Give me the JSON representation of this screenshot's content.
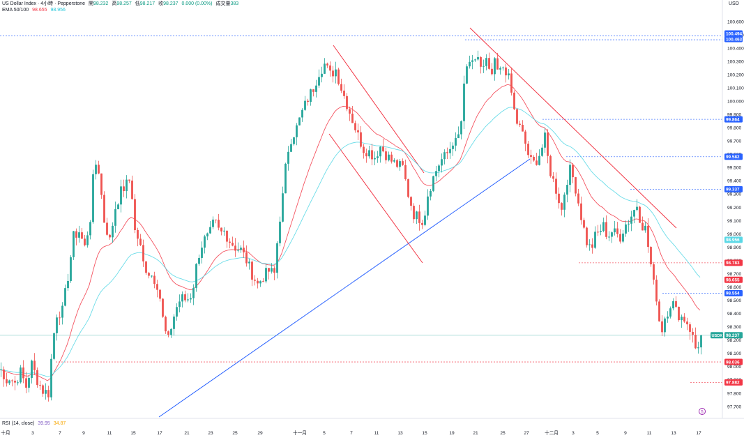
{
  "header": {
    "symbol_line": "US Dollar Index · 4小時 · Pepperstone",
    "ohlc": [
      {
        "k": "開",
        "v": "98.232"
      },
      {
        "k": "高",
        "v": "98.257"
      },
      {
        "k": "低",
        "v": "98.217"
      },
      {
        "k": "收",
        "v": "98.237"
      }
    ],
    "change": "0.000 (0.00%)",
    "volume_label": "成交量",
    "volume": "383",
    "ema_label": "EMA 50/100",
    "ema50_value": "98.655",
    "ema100_value": "98.956",
    "currency": "USD"
  },
  "rsi": {
    "label": "RSI (14, close)",
    "value1": "39.95",
    "value2": "34.87"
  },
  "colors": {
    "up": "#26a69a",
    "down": "#ef5350",
    "ema50": "#f23645",
    "ema100": "#5ad8e6",
    "trendline_blue": "#2962ff",
    "channel_red": "#f23645",
    "level_blue": "#2962ff",
    "level_red": "#f23645",
    "current": "#26a69a"
  },
  "events_marker": "5",
  "chart_data": {
    "type": "candlestick",
    "title": "",
    "y_ticks": [
      "97.700",
      "97.800",
      "97.900",
      "98.000",
      "98.100",
      "98.200",
      "98.300",
      "98.400",
      "98.500",
      "98.600",
      "98.700",
      "98.800",
      "98.900",
      "99.000",
      "99.100",
      "99.200",
      "99.300",
      "99.400",
      "99.500",
      "99.600",
      "99.700",
      "99.800",
      "99.900",
      "100.000",
      "100.100",
      "100.200",
      "100.300",
      "100.400",
      "100.500",
      "100.600"
    ],
    "ylim": [
      97.62,
      100.73
    ],
    "x_ticks": [
      "十月",
      "3",
      "7",
      "9",
      "11",
      "15",
      "17",
      "21",
      "23",
      "25",
      "29",
      "十一月",
      "5",
      "7",
      "11",
      "13",
      "15",
      "19",
      "21",
      "25",
      "27",
      "十二月",
      "3",
      "5",
      "9",
      "11",
      "13",
      "17"
    ],
    "current_price": "98.237",
    "current_symbol": "USDX",
    "price_tags": [
      {
        "value": "100.494",
        "style": "blue"
      },
      {
        "value": "100.463",
        "style": "blue"
      },
      {
        "value": "99.864",
        "style": "blue"
      },
      {
        "value": "99.582",
        "style": "blue"
      },
      {
        "value": "99.337",
        "style": "blue"
      },
      {
        "value": "98.956",
        "style": "cyan"
      },
      {
        "value": "98.783",
        "style": "red"
      },
      {
        "value": "98.655",
        "style": "red"
      },
      {
        "value": "98.554",
        "style": "blue"
      },
      {
        "value": "98.036",
        "style": "red"
      },
      {
        "value": "97.882",
        "style": "red"
      }
    ],
    "path_anchors": [
      [
        0,
        97.98
      ],
      [
        4,
        97.9
      ],
      [
        12,
        97.92
      ],
      [
        20,
        97.88
      ],
      [
        28,
        97.96
      ],
      [
        36,
        97.85
      ],
      [
        44,
        98.02
      ],
      [
        52,
        97.9
      ],
      [
        60,
        97.82
      ],
      [
        68,
        97.8
      ],
      [
        74,
        98.18
      ],
      [
        80,
        98.4
      ],
      [
        88,
        98.42
      ],
      [
        96,
        98.68
      ],
      [
        104,
        98.98
      ],
      [
        112,
        99.02
      ],
      [
        120,
        98.9
      ],
      [
        128,
        99.12
      ],
      [
        134,
        99.55
      ],
      [
        140,
        99.48
      ],
      [
        148,
        99.1
      ],
      [
        156,
        98.95
      ],
      [
        164,
        99.2
      ],
      [
        172,
        99.32
      ],
      [
        178,
        99.36
      ],
      [
        186,
        99.42
      ],
      [
        192,
        99.02
      ],
      [
        198,
        98.95
      ],
      [
        204,
        98.78
      ],
      [
        210,
        98.72
      ],
      [
        218,
        98.68
      ],
      [
        226,
        98.6
      ],
      [
        234,
        98.28
      ],
      [
        240,
        98.2
      ],
      [
        246,
        98.35
      ],
      [
        252,
        98.45
      ],
      [
        258,
        98.52
      ],
      [
        266,
        98.5
      ],
      [
        274,
        98.55
      ],
      [
        282,
        98.82
      ],
      [
        290,
        98.95
      ],
      [
        298,
        98.98
      ],
      [
        306,
        99.1
      ],
      [
        314,
        99.0
      ],
      [
        320,
        99.02
      ],
      [
        328,
        98.95
      ],
      [
        336,
        98.9
      ],
      [
        344,
        98.88
      ],
      [
        352,
        98.8
      ],
      [
        360,
        98.7
      ],
      [
        368,
        98.62
      ],
      [
        376,
        98.68
      ],
      [
        384,
        98.72
      ],
      [
        392,
        98.7
      ],
      [
        398,
        99.05
      ],
      [
        404,
        99.28
      ],
      [
        410,
        99.6
      ],
      [
        416,
        99.72
      ],
      [
        424,
        99.8
      ],
      [
        432,
        99.92
      ],
      [
        440,
        100.02
      ],
      [
        448,
        100.1
      ],
      [
        456,
        100.22
      ],
      [
        464,
        100.28
      ],
      [
        472,
        100.2
      ],
      [
        480,
        100.24
      ],
      [
        488,
        100.1
      ],
      [
        496,
        99.98
      ],
      [
        504,
        99.86
      ],
      [
        512,
        99.74
      ],
      [
        520,
        99.64
      ],
      [
        528,
        99.62
      ],
      [
        536,
        99.58
      ],
      [
        544,
        99.66
      ],
      [
        552,
        99.6
      ],
      [
        560,
        99.55
      ],
      [
        568,
        99.52
      ],
      [
        576,
        99.5
      ],
      [
        584,
        99.3
      ],
      [
        592,
        99.15
      ],
      [
        600,
        99.12
      ],
      [
        606,
        99.1
      ],
      [
        612,
        99.3
      ],
      [
        618,
        99.4
      ],
      [
        624,
        99.48
      ],
      [
        630,
        99.55
      ],
      [
        636,
        99.58
      ],
      [
        642,
        99.62
      ],
      [
        648,
        99.7
      ],
      [
        654,
        99.68
      ],
      [
        660,
        99.85
      ],
      [
        666,
        100.22
      ],
      [
        672,
        100.3
      ],
      [
        678,
        100.25
      ],
      [
        684,
        100.34
      ],
      [
        690,
        100.22
      ],
      [
        696,
        100.3
      ],
      [
        702,
        100.16
      ],
      [
        708,
        100.28
      ],
      [
        714,
        100.2
      ],
      [
        720,
        100.26
      ],
      [
        726,
        100.22
      ],
      [
        732,
        100.06
      ],
      [
        738,
        99.86
      ],
      [
        744,
        99.8
      ],
      [
        750,
        99.72
      ],
      [
        756,
        99.6
      ],
      [
        762,
        99.52
      ],
      [
        768,
        99.56
      ],
      [
        774,
        99.62
      ],
      [
        780,
        99.72
      ],
      [
        786,
        99.5
      ],
      [
        792,
        99.4
      ],
      [
        798,
        99.3
      ],
      [
        804,
        99.18
      ],
      [
        810,
        99.38
      ],
      [
        816,
        99.48
      ],
      [
        822,
        99.4
      ],
      [
        828,
        99.24
      ],
      [
        834,
        99.08
      ],
      [
        840,
        98.94
      ],
      [
        846,
        98.88
      ],
      [
        852,
        98.98
      ],
      [
        858,
        99.02
      ],
      [
        864,
        99.06
      ],
      [
        870,
        98.98
      ],
      [
        876,
        99.02
      ],
      [
        882,
        99.0
      ],
      [
        888,
        98.98
      ],
      [
        894,
        99.06
      ],
      [
        900,
        99.1
      ],
      [
        906,
        99.16
      ],
      [
        912,
        99.22
      ],
      [
        918,
        99.08
      ],
      [
        924,
        99.04
      ],
      [
        930,
        98.84
      ],
      [
        936,
        98.62
      ],
      [
        942,
        98.48
      ],
      [
        946,
        98.22
      ],
      [
        950,
        98.35
      ],
      [
        956,
        98.42
      ],
      [
        962,
        98.5
      ],
      [
        968,
        98.42
      ],
      [
        974,
        98.38
      ],
      [
        980,
        98.36
      ],
      [
        986,
        98.32
      ],
      [
        992,
        98.22
      ],
      [
        998,
        98.1
      ],
      [
        1002,
        98.24
      ],
      [
        1006,
        98.237
      ]
    ]
  }
}
